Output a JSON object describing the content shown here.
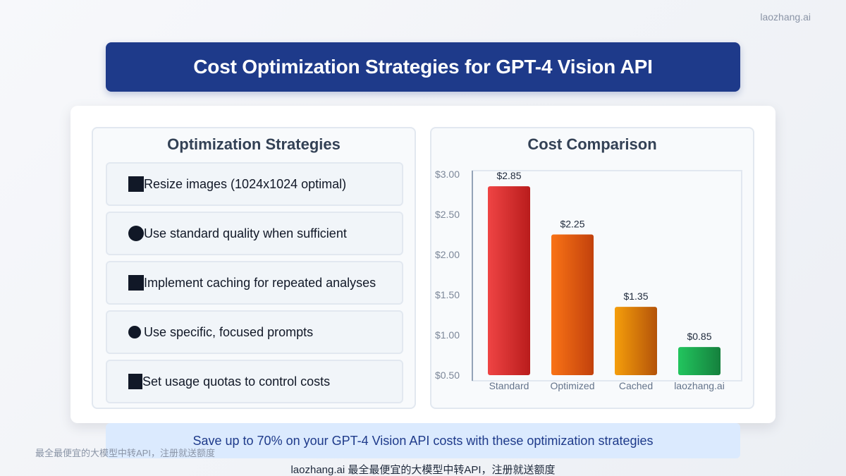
{
  "watermark_top": "laozhang.ai",
  "title": "Cost Optimization Strategies for GPT-4 Vision API",
  "strategies_panel": {
    "title": "Optimization Strategies",
    "items": [
      {
        "icon": "square-icon",
        "text": "Resize images (1024x1024 optimal)"
      },
      {
        "icon": "gear-icon",
        "text": "Use standard quality when sufficient"
      },
      {
        "icon": "square-icon",
        "text": "Implement caching for repeated analyses"
      },
      {
        "icon": "bomb-icon",
        "text": "Use specific, focused prompts"
      },
      {
        "icon": "square-icon",
        "text": "Set usage quotas to control costs"
      }
    ]
  },
  "chart_data": {
    "type": "bar",
    "title": "Cost Comparison",
    "categories": [
      "Standard",
      "Optimized",
      "Cached",
      "laozhang.ai"
    ],
    "values": [
      2.85,
      2.25,
      1.35,
      0.85
    ],
    "value_labels": [
      "$2.85",
      "$2.25",
      "$1.35",
      "$0.85"
    ],
    "yticks": [
      3.0,
      2.5,
      2.0,
      1.5,
      1.0,
      0.5
    ],
    "ytick_labels": [
      "$3.00",
      "$2.50",
      "$2.00",
      "$1.50",
      "$1.00",
      "$0.50"
    ],
    "ylim": [
      0.5,
      3.0
    ],
    "xlabel": "",
    "ylabel": "",
    "grid": false,
    "bar_colors": [
      [
        "#ef4444",
        "#b91c1c"
      ],
      [
        "#f97316",
        "#c2410c"
      ],
      [
        "#f59e0b",
        "#b45309"
      ],
      [
        "#22c55e",
        "#15803d"
      ]
    ]
  },
  "savings_banner": "Save up to 70% on your GPT-4 Vision API costs with these optimization strategies",
  "watermark_bottom_left": "最全最便宜的大模型中转API，注册就送额度",
  "footer": "laozhang.ai 最全最便宜的大模型中转API，注册就送额度"
}
